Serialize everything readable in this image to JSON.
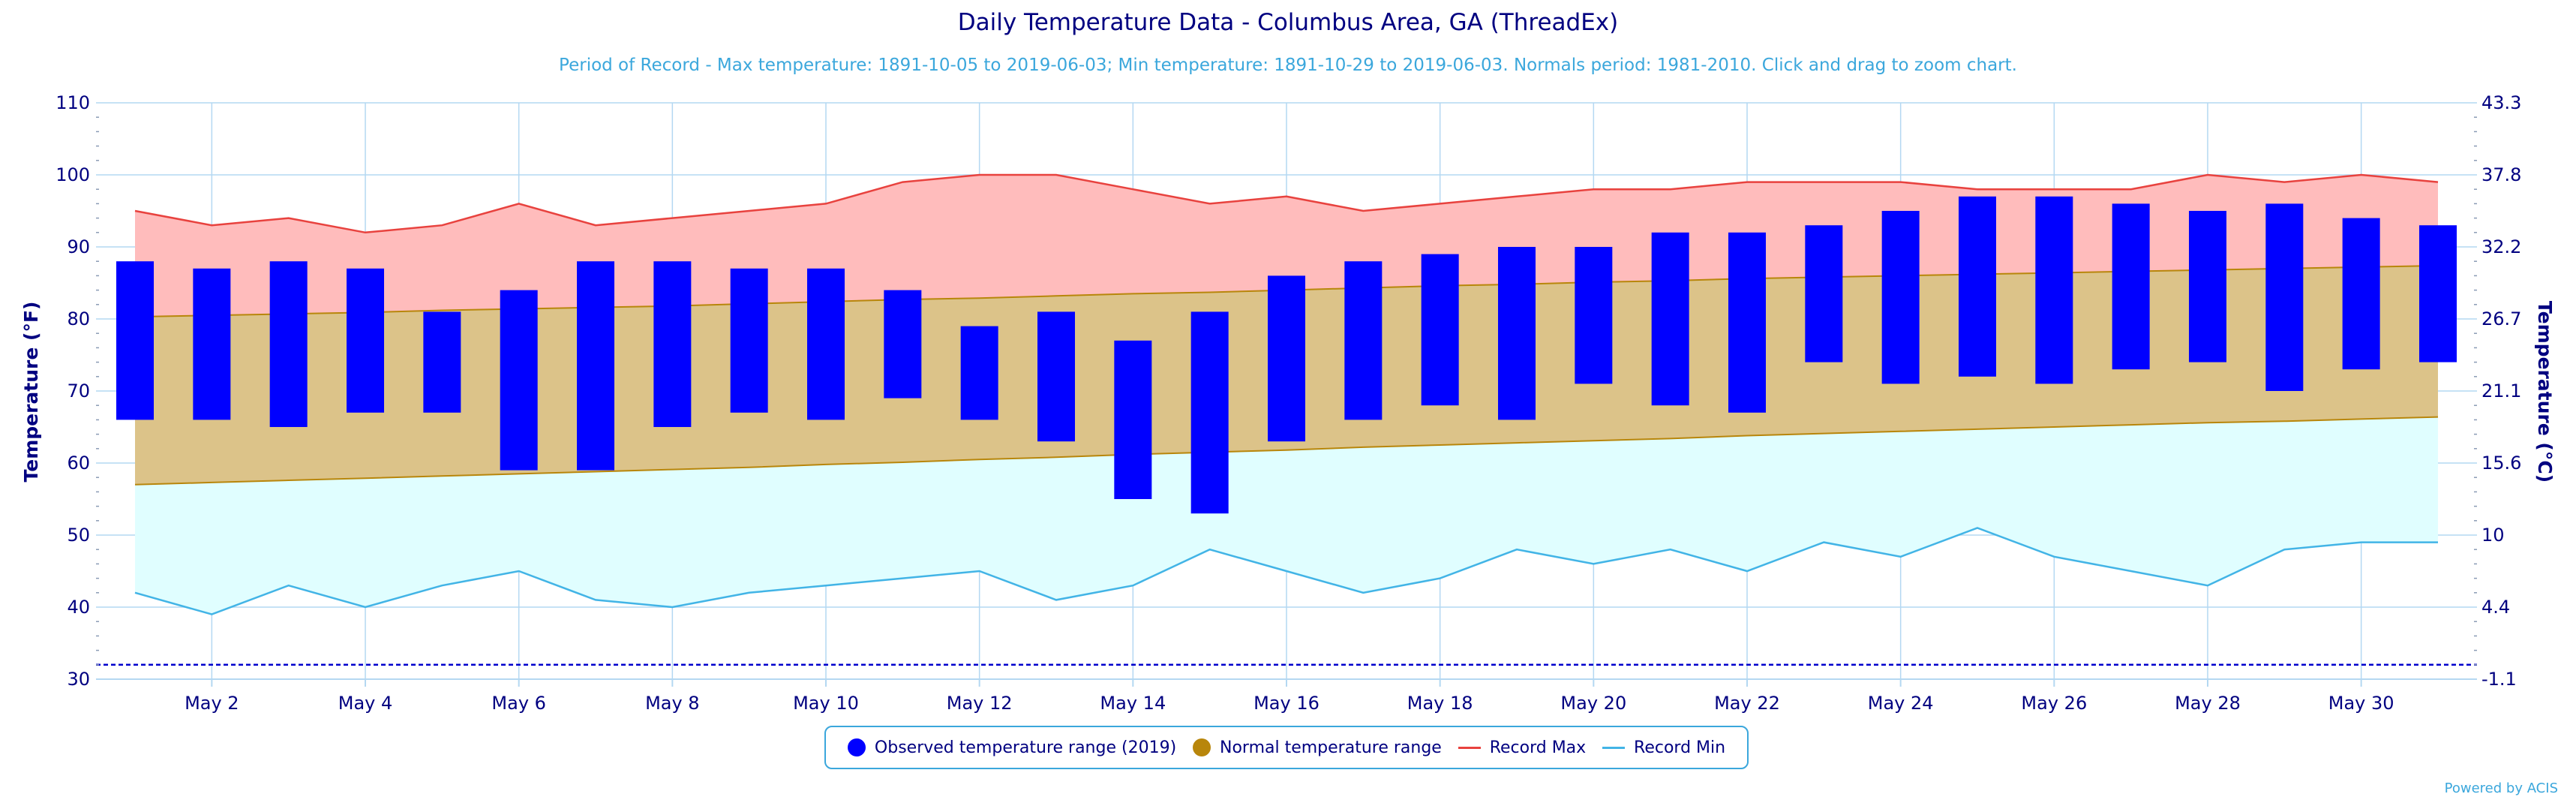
{
  "colors": {
    "observed": "#0000ff",
    "normal_fill": "#dcc389",
    "normal_line": "#b8860b",
    "record_max_fill": "#ffbcbc",
    "record_max_line": "#e8423e",
    "record_min_fill": "#e0feff",
    "record_min_line": "#42b4e6",
    "grid": "#b4d8f2",
    "text": "#000080",
    "freeze_line": "#0000cc"
  },
  "legend": {
    "observed": "Observed temperature range (2019)",
    "normal": "Normal temperature range",
    "record_max": "Record Max",
    "record_min": "Record Min"
  },
  "credit": "Powered by ACIS",
  "chart_data": {
    "type": "bar",
    "title": "Daily Temperature Data - Columbus Area, GA (ThreadEx)",
    "subtitle": "Period of Record - Max temperature: 1891-10-05 to 2019-06-03; Min temperature: 1891-10-29 to 2019-06-03. Normals period: 1981-2010. Click and drag to zoom chart.",
    "ylabel": "Temperature (°F)",
    "ylabel_right": "Temperature (°C)",
    "ylim": [
      30,
      110
    ],
    "y_ticks": [
      30,
      40,
      50,
      60,
      70,
      80,
      90,
      100,
      110
    ],
    "y_right_ticks": [
      "-1.1",
      "4.4",
      "10",
      "15.6",
      "21.1",
      "26.7",
      "32.2",
      "37.8",
      "43.3"
    ],
    "x_tick_labels": [
      "May 2",
      "May 4",
      "May 6",
      "May 8",
      "May 10",
      "May 12",
      "May 14",
      "May 16",
      "May 18",
      "May 20",
      "May 22",
      "May 24",
      "May 26",
      "May 28",
      "May 30"
    ],
    "x_tick_days": [
      2,
      4,
      6,
      8,
      10,
      12,
      14,
      16,
      18,
      20,
      22,
      24,
      26,
      28,
      30
    ],
    "days": [
      1,
      2,
      3,
      4,
      5,
      6,
      7,
      8,
      9,
      10,
      11,
      12,
      13,
      14,
      15,
      16,
      17,
      18,
      19,
      20,
      21,
      22,
      23,
      24,
      25,
      26,
      27,
      28,
      29,
      30,
      31
    ],
    "grid": true,
    "freezing_line": 32,
    "legend_position": "bottom-center",
    "series": [
      {
        "name": "Observed temperature range (2019)",
        "type": "columnrange",
        "low": [
          66,
          66,
          65,
          67,
          67,
          59,
          59,
          65,
          67,
          66,
          69,
          66,
          63,
          55,
          53,
          63,
          66,
          68,
          66,
          71,
          68,
          67,
          74,
          71,
          72,
          71,
          73,
          74,
          70,
          73,
          74
        ],
        "high": [
          88,
          87,
          88,
          87,
          81,
          84,
          88,
          88,
          87,
          87,
          84,
          79,
          81,
          77,
          81,
          86,
          88,
          89,
          90,
          90,
          92,
          92,
          93,
          95,
          97,
          97,
          96,
          95,
          96,
          94,
          93
        ]
      },
      {
        "name": "Normal temperature range",
        "type": "arearange",
        "low": [
          57,
          57.3,
          57.6,
          57.9,
          58.2,
          58.5,
          58.8,
          59.1,
          59.4,
          59.8,
          60.1,
          60.5,
          60.8,
          61.2,
          61.5,
          61.8,
          62.2,
          62.5,
          62.8,
          63.1,
          63.4,
          63.8,
          64.1,
          64.4,
          64.7,
          65,
          65.3,
          65.6,
          65.8,
          66.1,
          66.4
        ],
        "high": [
          80.3,
          80.5,
          80.7,
          80.9,
          81.2,
          81.4,
          81.6,
          81.8,
          82.1,
          82.4,
          82.7,
          82.9,
          83.2,
          83.5,
          83.7,
          84,
          84.3,
          84.6,
          84.8,
          85.1,
          85.3,
          85.6,
          85.8,
          86,
          86.2,
          86.4,
          86.6,
          86.8,
          87,
          87.2,
          87.4
        ]
      },
      {
        "name": "Record Max",
        "type": "line",
        "values": [
          95,
          93,
          94,
          92,
          93,
          96,
          93,
          94,
          95,
          96,
          99,
          100,
          100,
          98,
          96,
          97,
          95,
          96,
          97,
          98,
          98,
          99,
          99,
          99,
          98,
          98,
          98,
          100,
          99,
          100,
          99
        ]
      },
      {
        "name": "Record Min",
        "type": "line",
        "values": [
          42,
          39,
          43,
          40,
          43,
          45,
          41,
          40,
          42,
          43,
          44,
          45,
          41,
          43,
          48,
          45,
          42,
          44,
          48,
          46,
          48,
          45,
          49,
          47,
          51,
          47,
          45,
          43,
          48,
          49,
          49
        ]
      }
    ]
  }
}
